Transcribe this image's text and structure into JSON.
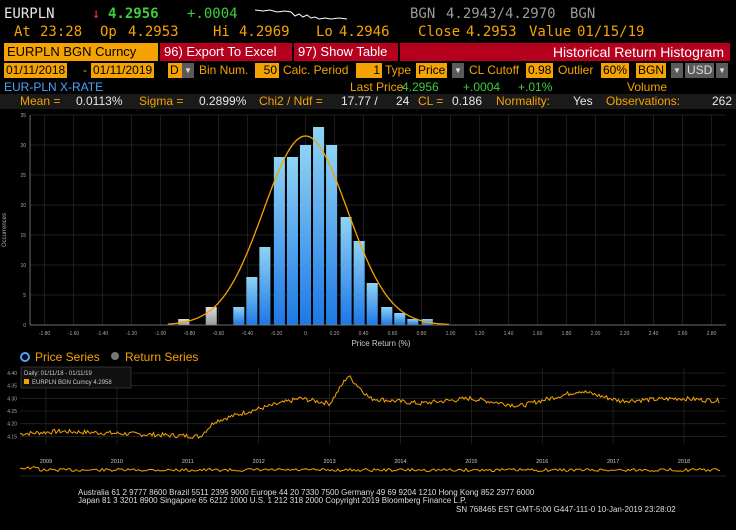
{
  "quote": {
    "ticker": "EURPLN",
    "arrow": "↓",
    "last": "4.2956",
    "change": "+.0004",
    "source": "BGN",
    "bid_ask": "4.2943/4.2970",
    "source2": "BGN",
    "at_label": "At",
    "at_time": "23:28",
    "op_label": "Op",
    "op_val": "4.2953",
    "hi_label": "Hi",
    "hi_val": "4.2969",
    "lo_label": "Lo",
    "lo_val": "4.2946",
    "close_label": "Close",
    "close_val": "4.2953",
    "value_label": "Value",
    "value_date": "01/15/19"
  },
  "toolbar": {
    "security": "EURPLN BGN Curncy",
    "export_num": "96)",
    "export_label": "Export To Excel",
    "show_num": "97)",
    "show_label": "Show Table",
    "title": "Historical Return Histogram"
  },
  "params": {
    "start_date": "01/11/2018",
    "end_date": "01/11/2019",
    "periodicity": "D",
    "bin_label": "Bin Num.",
    "bin_val": "50",
    "calc_label": "Calc. Period",
    "calc_val": "1",
    "type_label": "Type",
    "type_val": "Price",
    "cutoff_label": "CL Cutoff",
    "cutoff_val": "0.98",
    "outlier_label": "Outlier",
    "outlier_val": "60%",
    "source_val": "BGN",
    "currency_val": "USD"
  },
  "stats_header": {
    "name": "EUR-PLN X-RATE",
    "last_price_label": "Last Price",
    "volume_label": "Volume",
    "last_price": "4.2956",
    "chg": "+.0004",
    "chg_pct": "+.01%"
  },
  "stats": {
    "mean_label": "Mean =",
    "mean": "0.0113%",
    "sigma_label": "Sigma =",
    "sigma": "0.2899%",
    "chi2_label": "Chi2 / Ndf =",
    "chi2": "17.77 /",
    "ndf": "24",
    "cl_label": "CL =",
    "cl": "0.186",
    "normality_label": "Normality:",
    "normality": "Yes",
    "obs_label": "Observations:",
    "obs": "262"
  },
  "chart_data": [
    {
      "type": "bar",
      "title": "",
      "xlabel": "Price Return (%)",
      "ylabel": "Occurrences",
      "ylim": [
        0,
        35
      ],
      "yticks": [
        "0",
        "5",
        "10",
        "15",
        "20",
        "25",
        "30",
        "35"
      ],
      "xticks": [
        "-1.80",
        "-1.60",
        "-1.40",
        "-1.20",
        "-1.00",
        "-0.80",
        "-0.60",
        "-0.40",
        "-0.20",
        "0",
        "0.20",
        "0.40",
        "0.60",
        "0.80",
        "1.00",
        "1.20",
        "1.40",
        "1.60",
        "1.80",
        "2.00",
        "2.20",
        "2.40",
        "2.60",
        "2.80"
      ],
      "bins": [
        -0.84,
        -0.74,
        -0.65,
        -0.56,
        -0.46,
        -0.37,
        -0.28,
        -0.18,
        -0.09,
        0.0,
        0.09,
        0.18,
        0.28,
        0.37,
        0.46,
        0.56,
        0.65,
        0.74,
        0.84
      ],
      "values": [
        1,
        0,
        3,
        0,
        3,
        8,
        13,
        28,
        28,
        30,
        33,
        30,
        18,
        14,
        7,
        3,
        2,
        1,
        1
      ],
      "fit": "normal",
      "grid": true
    },
    {
      "type": "line",
      "legend": [
        "Price Series",
        "Return Series"
      ],
      "selected": "Price Series",
      "info_title": "Daily: 01/11/18 - 01/11/19",
      "series_label": "EURPLN BGN Curncy 4.2958",
      "yticks": [
        "4.15",
        "4.20",
        "4.25",
        "4.30",
        "4.35",
        "4.40"
      ],
      "xticks": [
        "2009",
        "2010",
        "2011",
        "2012",
        "2013",
        "2014",
        "2015",
        "2016",
        "2017",
        "2018"
      ],
      "grid": true
    }
  ],
  "footer": {
    "line1": "Australia 61 2 9777 8600 Brazil 5511 2395 9000 Europe 44 20 7330 7500 Germany 49 69 9204 1210 Hong Kong 852 2977 6000",
    "line2": "Japan 81 3 3201 8900          Singapore 65 6212 1000        U.S. 1 212 318 2000           Copyright 2019 Bloomberg Finance L.P.",
    "line3": "SN 768465 EST  GMT-5:00 G447-111-0 10-Jan-2019 23:28:02"
  },
  "colors": {
    "accent": "#f5a300",
    "up": "#3ccf3c",
    "down": "#ff3030",
    "bar_light": "#8fd3f4",
    "bar_dark": "#1e78e6",
    "bar_outlier": "#9a9a9a"
  }
}
